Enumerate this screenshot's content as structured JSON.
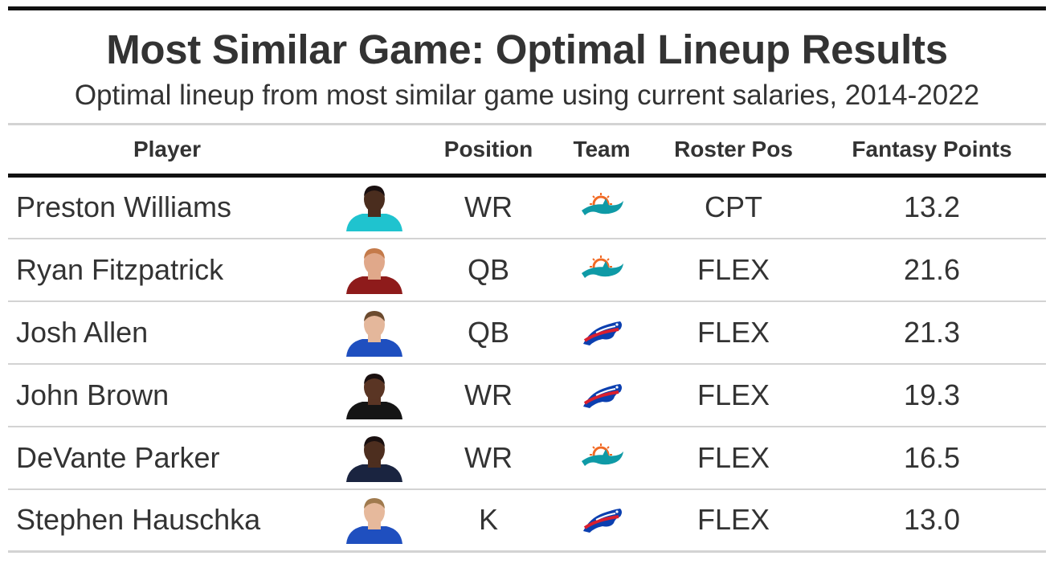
{
  "header": {
    "title": "Most Similar Game: Optimal Lineup Results",
    "subtitle": "Optimal lineup from most similar game using current salaries, 2014-2022"
  },
  "columns": {
    "player": "Player",
    "headshot": "",
    "position": "Position",
    "team": "Team",
    "roster_pos": "Roster Pos",
    "fantasy_points": "Fantasy Points"
  },
  "rows": [
    {
      "player": "Preston Williams",
      "position": "WR",
      "team": "dolphins-logo",
      "roster_pos": "CPT",
      "fantasy_points": "13.2",
      "jersey": "#1fc3cf",
      "skin": "#4a2d1e",
      "hair": "#1a1010"
    },
    {
      "player": "Ryan Fitzpatrick",
      "position": "QB",
      "team": "dolphins-logo",
      "roster_pos": "FLEX",
      "fantasy_points": "21.6",
      "jersey": "#8e1b1b",
      "skin": "#e0a88a",
      "hair": "#c47a4a"
    },
    {
      "player": "Josh Allen",
      "position": "QB",
      "team": "bills-logo",
      "roster_pos": "FLEX",
      "fantasy_points": "21.3",
      "jersey": "#1f4fbf",
      "skin": "#e4b79b",
      "hair": "#6b4a2e"
    },
    {
      "player": "John Brown",
      "position": "WR",
      "team": "bills-logo",
      "roster_pos": "FLEX",
      "fantasy_points": "19.3",
      "jersey": "#151515",
      "skin": "#5a3524",
      "hair": "#1a1010"
    },
    {
      "player": "DeVante Parker",
      "position": "WR",
      "team": "dolphins-logo",
      "roster_pos": "FLEX",
      "fantasy_points": "16.5",
      "jersey": "#1a2440",
      "skin": "#4d2e1f",
      "hair": "#1a1010"
    },
    {
      "player": "Stephen Hauschka",
      "position": "K",
      "team": "bills-logo",
      "roster_pos": "FLEX",
      "fantasy_points": "13.0",
      "jersey": "#1f4fbf",
      "skin": "#e6b99c",
      "hair": "#a07a4e"
    }
  ],
  "colors": {
    "dolphins_aqua": "#0f9aa6",
    "dolphins_orange": "#f26a24",
    "bills_blue": "#0b3fb0",
    "bills_red": "#d91f2f"
  }
}
